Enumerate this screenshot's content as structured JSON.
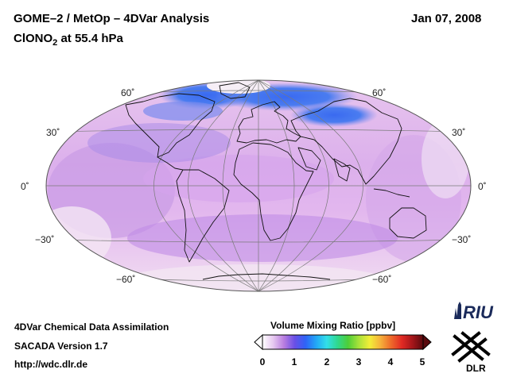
{
  "header": {
    "title": "GOME–2 / MetOp – 4DVar Analysis",
    "species": "ClONO",
    "species_sub": "2",
    "level": " at 55.4 hPa",
    "date": "Jan 07, 2008"
  },
  "map": {
    "projection": "Hammer-Aitoff",
    "lat_labels_left": [
      "60˚",
      "30˚",
      "0˚",
      "−30˚",
      "−60˚"
    ],
    "lat_labels_right": [
      "60˚",
      "30˚",
      "0˚",
      "−30˚",
      "−60˚"
    ]
  },
  "colorbar": {
    "title": "Volume Mixing Ratio [ppbv]",
    "ticks": [
      "0",
      "1",
      "2",
      "3",
      "4",
      "5"
    ],
    "colors": [
      "#ffffff",
      "#e6c8f0",
      "#b97ee0",
      "#6a4fe6",
      "#2f62f6",
      "#22a6f6",
      "#32dfe9",
      "#2fd88e",
      "#4ece38",
      "#a9e23a",
      "#f2ee38",
      "#f6b23a",
      "#ee6a2a",
      "#e12a24",
      "#a5161a",
      "#5a0a0e"
    ]
  },
  "footer": {
    "line1": "4DVar Chemical Data Assimilation",
    "line2": "SACADA Version 1.7",
    "line3": "http://wdc.dlr.de"
  },
  "logos": {
    "riu": "RIU",
    "dlr": "DLR"
  }
}
